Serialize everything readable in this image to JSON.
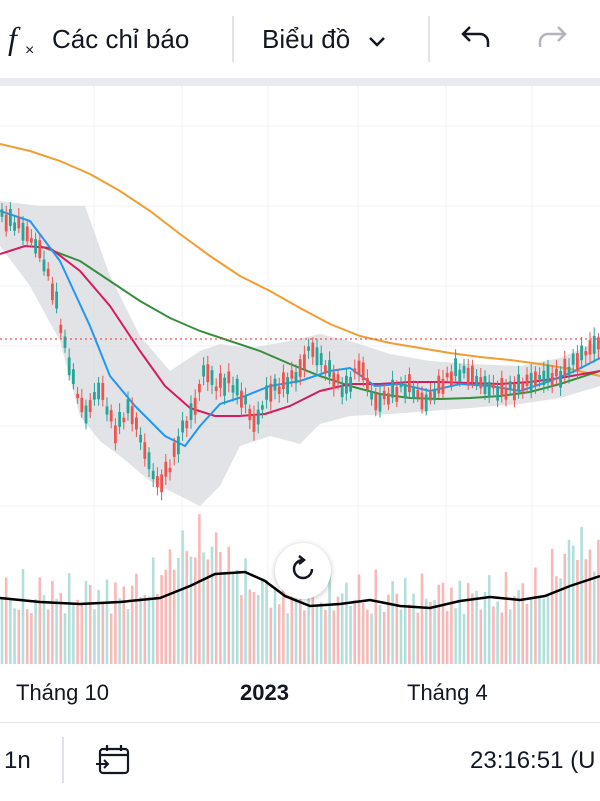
{
  "toolbar": {
    "indicators_icon": "fx-icon",
    "indicators_label": "Các chỉ báo",
    "chart_type_label": "Biểu đồ",
    "undo_icon": "undo-icon",
    "redo_icon": "redo-icon"
  },
  "xaxis": {
    "labels": [
      "Tháng 10",
      "2023",
      "Tháng 4"
    ]
  },
  "bottombar": {
    "interval_label": "1n",
    "calendar_icon": "calendar-range-icon",
    "clock_text": "23:16:51 (U"
  },
  "colors": {
    "bullish": "#26a69a",
    "bearish": "#ef5350",
    "ma_short": "#2196f3",
    "ma_mid": "#d81b60",
    "ma_long": "#388e3c",
    "ma_200": "#f39c33",
    "bollinger_fill": "#d7d9de",
    "volume_ma": "#000000",
    "price_line": "#ef5350"
  }
}
